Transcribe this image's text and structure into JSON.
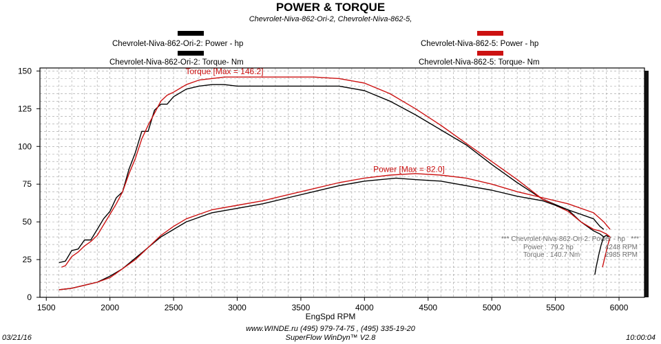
{
  "title": "POWER & TORQUE",
  "subtitle": "Chevrolet-Niva-862-Ori-2, Chevrolet-Niva-862-5,",
  "legend": {
    "left_power": "Chevrolet-Niva-862-Ori-2: Power -  hp",
    "left_torque": "Chevrolet-Niva-862-Ori-2: Torque-  Nm",
    "right_power": "Chevrolet-Niva-862-5: Power -  hp",
    "right_torque": "Chevrolet-Niva-862-5: Torque-  Nm",
    "color_ori": "#000000",
    "color_5": "#cc1111"
  },
  "readout": {
    "header": "*** Chevrolet-Niva-862-Ori-2: Power - hp   ***",
    "power_label": "Power :  79.2 hp",
    "power_rpm": "4248 RPM",
    "torque_label": "Torque : 140.7 Nm",
    "torque_rpm": "2985 RPM"
  },
  "footer": {
    "date": "03/21/16",
    "contact": "www.WINDE.ru   (495) 979-74-75 , (495) 335-19-20",
    "software": "SuperFlow WinDyn™ V2.8",
    "time": "10:00:04"
  },
  "chart_data": {
    "type": "line",
    "xlabel": "EngSpd  RPM",
    "xlim": [
      1450,
      6200
    ],
    "ylim": [
      0,
      152
    ],
    "x_ticks": [
      1500,
      2000,
      2500,
      3000,
      3500,
      4000,
      4500,
      5000,
      5500,
      6000
    ],
    "y_ticks": [
      0,
      25,
      50,
      75,
      100,
      125,
      150
    ],
    "grid": true,
    "annotations": [
      {
        "text": "Torque [Max = 146.2]",
        "x": 2900,
        "y": 148,
        "color": "#cc1111"
      },
      {
        "text": "Power  [Max = 82.0]",
        "x": 4350,
        "y": 83,
        "color": "#cc1111"
      }
    ],
    "series": [
      {
        "name": "Chevrolet-Niva-862-Ori-2: Torque-  Nm",
        "color": "#000000",
        "x": [
          1600,
          1650,
          1700,
          1750,
          1800,
          1850,
          1900,
          1950,
          2000,
          2050,
          2100,
          2150,
          2200,
          2250,
          2300,
          2350,
          2400,
          2450,
          2500,
          2600,
          2700,
          2800,
          2900,
          3000,
          3200,
          3400,
          3600,
          3800,
          4000,
          4200,
          4400,
          4600,
          4800,
          5000,
          5200,
          5400,
          5600,
          5700,
          5800,
          5850,
          5880,
          5900,
          5920
        ],
        "y": [
          23,
          24,
          31,
          32,
          38,
          38,
          45,
          52,
          57,
          66,
          70,
          85,
          96,
          110,
          110,
          124,
          128,
          128,
          133,
          138,
          140,
          141,
          141,
          140,
          140,
          140,
          140,
          140,
          137,
          130,
          121,
          111,
          101,
          88,
          76,
          65,
          58,
          50,
          44,
          42,
          40,
          41,
          40
        ]
      },
      {
        "name": "Chevrolet-Niva-862-5: Torque-  Nm",
        "color": "#cc1111",
        "x": [
          1620,
          1650,
          1700,
          1750,
          1800,
          1850,
          1900,
          1950,
          2000,
          2050,
          2100,
          2150,
          2200,
          2250,
          2300,
          2350,
          2400,
          2450,
          2500,
          2600,
          2700,
          2800,
          2900,
          3000,
          3200,
          3400,
          3600,
          3800,
          4000,
          4200,
          4400,
          4600,
          4800,
          5000,
          5200,
          5400,
          5600,
          5700,
          5800,
          5850,
          5900,
          5930
        ],
        "y": [
          20,
          21,
          27,
          30,
          34,
          37,
          41,
          48,
          55,
          62,
          70,
          82,
          92,
          105,
          114,
          122,
          130,
          134,
          136,
          141,
          144,
          145,
          146,
          146,
          146,
          146,
          146,
          145,
          142,
          135,
          125,
          114,
          102,
          90,
          78,
          65,
          57,
          50,
          45,
          44,
          42,
          40
        ]
      },
      {
        "name": "Chevrolet-Niva-862-Ori-2: Power -  hp",
        "color": "#000000",
        "x": [
          1600,
          1700,
          1800,
          1900,
          2000,
          2100,
          2200,
          2300,
          2400,
          2500,
          2600,
          2700,
          2800,
          3000,
          3200,
          3400,
          3600,
          3800,
          4000,
          4248,
          4400,
          4600,
          4800,
          5000,
          5200,
          5400,
          5600,
          5800,
          5850,
          5880
        ],
        "y": [
          5,
          6,
          8,
          10,
          14,
          19,
          26,
          33,
          40,
          45,
          50,
          53,
          56,
          59,
          62,
          66,
          70,
          74,
          77,
          79,
          78,
          77,
          74,
          71,
          67,
          64,
          58,
          52,
          47,
          45
        ]
      },
      {
        "name": "Chevrolet-Niva-862-5: Power -  hp",
        "color": "#cc1111",
        "x": [
          1600,
          1700,
          1800,
          1900,
          2000,
          2100,
          2200,
          2300,
          2400,
          2500,
          2600,
          2700,
          2800,
          3000,
          3200,
          3400,
          3600,
          3800,
          4000,
          4200,
          4400,
          4600,
          4800,
          5000,
          5200,
          5400,
          5600,
          5800,
          5880,
          5930
        ],
        "y": [
          5,
          6,
          8,
          10,
          13,
          19,
          25,
          33,
          41,
          47,
          52,
          55,
          58,
          61,
          64,
          68,
          72,
          76,
          79,
          81,
          82,
          81,
          79,
          75,
          70,
          66,
          62,
          56,
          50,
          45
        ]
      },
      {
        "name": "Chevrolet-Niva-862-Ori-2: Power -  hp (tail)",
        "color": "#000000",
        "x": [
          5880,
          5860,
          5840,
          5820,
          5810
        ],
        "y": [
          40,
          35,
          28,
          20,
          15
        ]
      },
      {
        "name": "Chevrolet-Niva-862-5: Power -  hp (tail)",
        "color": "#cc1111",
        "x": [
          5930,
          5910,
          5890,
          5870
        ],
        "y": [
          40,
          34,
          27,
          20
        ]
      }
    ]
  }
}
